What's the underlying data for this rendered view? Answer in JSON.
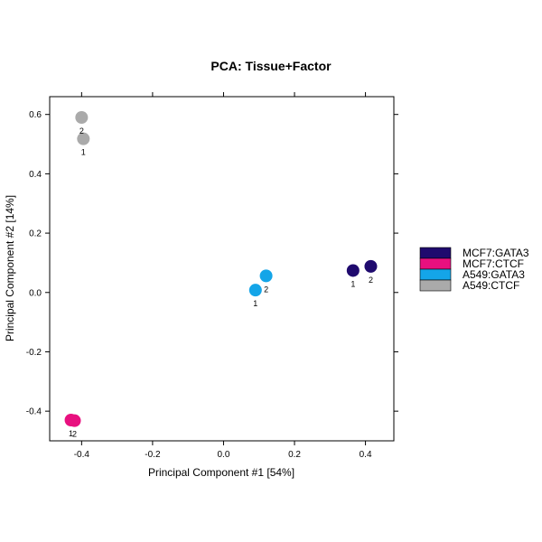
{
  "chart_data": {
    "type": "scatter",
    "title": "PCA: Tissue+Factor",
    "xlabel": "Principal Component #1 [54%]",
    "ylabel": "Principal Component #2 [14%]",
    "xlim": [
      -0.49,
      0.48
    ],
    "ylim": [
      -0.5,
      0.66
    ],
    "xticks": [
      -0.4,
      -0.2,
      0.0,
      0.2,
      0.4
    ],
    "xtick_labels": [
      "-0.4",
      "-0.2",
      "0.0",
      "0.2",
      "0.4"
    ],
    "yticks": [
      -0.4,
      -0.2,
      0.0,
      0.2,
      0.4,
      0.6
    ],
    "ytick_labels": [
      "-0.4",
      "-0.2",
      "0.0",
      "0.2",
      "0.4",
      "0.6"
    ],
    "grid": false,
    "legend_position": "right",
    "series": [
      {
        "name": "MCF7:GATA3",
        "color": "#1f0a6e",
        "points": [
          {
            "x": 0.365,
            "y": 0.074,
            "label": "1"
          },
          {
            "x": 0.415,
            "y": 0.088,
            "label": "2"
          }
        ]
      },
      {
        "name": "MCF7:CTCF",
        "color": "#e8107f",
        "points": [
          {
            "x": -0.43,
            "y": -0.43,
            "label": "1"
          },
          {
            "x": -0.42,
            "y": -0.432,
            "label": "2"
          }
        ]
      },
      {
        "name": "A549:GATA3",
        "color": "#14a5e8",
        "points": [
          {
            "x": 0.09,
            "y": 0.008,
            "label": "1"
          },
          {
            "x": 0.12,
            "y": 0.056,
            "label": "2"
          }
        ]
      },
      {
        "name": "A549:CTCF",
        "color": "#aaaaaa",
        "points": [
          {
            "x": -0.395,
            "y": 0.518,
            "label": "1"
          },
          {
            "x": -0.4,
            "y": 0.59,
            "label": "2"
          }
        ]
      }
    ]
  }
}
